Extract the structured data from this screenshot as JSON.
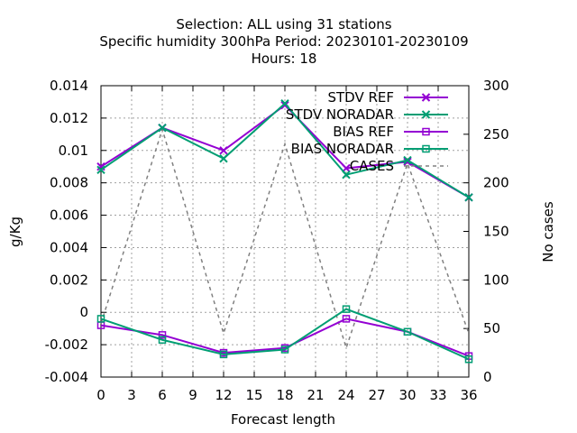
{
  "chart_data": {
    "type": "line",
    "title_lines": [
      "Selection: ALL using    31 stations",
      "Specific humidity 300hPa   Period: 20230101-20230109",
      "Hours:  18"
    ],
    "xlabel": "Forecast length",
    "ylabel": "g/Kg",
    "y2label": "No cases",
    "x": [
      0,
      6,
      12,
      18,
      24,
      30,
      36
    ],
    "xlim": [
      0,
      36
    ],
    "ylim": [
      -0.004,
      0.014
    ],
    "y2lim": [
      0,
      300
    ],
    "xticks": [
      "0",
      "3",
      "6",
      "9",
      "12",
      "15",
      "18",
      "21",
      "24",
      "27",
      "30",
      "33",
      "36"
    ],
    "xtick_values": [
      0,
      3,
      6,
      9,
      12,
      15,
      18,
      21,
      24,
      27,
      30,
      33,
      36
    ],
    "yticks": [
      "-0.004",
      "-0.002",
      "0",
      "0.002",
      "0.004",
      "0.006",
      "0.008",
      "0.01",
      "0.012",
      "0.014"
    ],
    "ytick_values": [
      -0.004,
      -0.002,
      0,
      0.002,
      0.004,
      0.006,
      0.008,
      0.01,
      0.012,
      0.014
    ],
    "y2ticks": [
      "0",
      "50",
      "100",
      "150",
      "200",
      "250",
      "300"
    ],
    "y2tick_values": [
      0,
      50,
      100,
      150,
      200,
      250,
      300
    ],
    "grid": true,
    "legend_position": "top-right",
    "series": [
      {
        "name": "STDV REF",
        "color": "#9400d3",
        "marker": "x",
        "axis": "y",
        "values": [
          0.009,
          0.0114,
          0.01,
          0.0128,
          0.0089,
          0.0093,
          0.0071
        ]
      },
      {
        "name": "STDV NORADAR",
        "color": "#009e73",
        "marker": "x",
        "axis": "y",
        "values": [
          0.0088,
          0.0114,
          0.0095,
          0.0129,
          0.0085,
          0.0094,
          0.0071
        ]
      },
      {
        "name": "BIAS REF",
        "color": "#9400d3",
        "marker": "square",
        "axis": "y",
        "values": [
          -0.0008,
          -0.0014,
          -0.0025,
          -0.0022,
          -0.0004,
          -0.0012,
          -0.0027
        ]
      },
      {
        "name": "BIAS NORADAR",
        "color": "#009e73",
        "marker": "square",
        "axis": "y",
        "values": [
          -0.0004,
          -0.0017,
          -0.0026,
          -0.0023,
          0.0002,
          -0.0012,
          -0.0029
        ]
      },
      {
        "name": "CASES",
        "color": "#808080",
        "marker": "none",
        "dashed": true,
        "axis": "y2",
        "values": [
          55,
          255,
          45,
          240,
          30,
          220,
          45
        ]
      }
    ]
  }
}
